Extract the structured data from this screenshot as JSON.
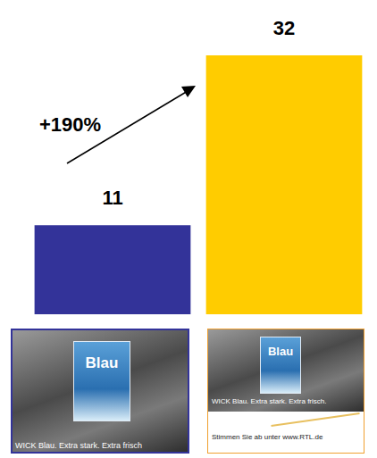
{
  "chart_data": {
    "type": "bar",
    "categories": [
      null,
      null
    ],
    "values": [
      11,
      32
    ],
    "colors": [
      "#333399",
      "#ffcc00"
    ],
    "ylim": [
      0,
      32
    ],
    "data_labels": true,
    "tick_labels": false,
    "grid": false,
    "annotation": "+190%"
  },
  "images": [
    {
      "texts": [
        "Blau",
        "WICK Blau. Extra stark. Extra frisch"
      ]
    },
    {
      "texts": [
        "Blau",
        "WICK Blau. Extra stark. Extra frisch.",
        "Stimmen Sie ab unter www.RTL.de"
      ]
    }
  ]
}
